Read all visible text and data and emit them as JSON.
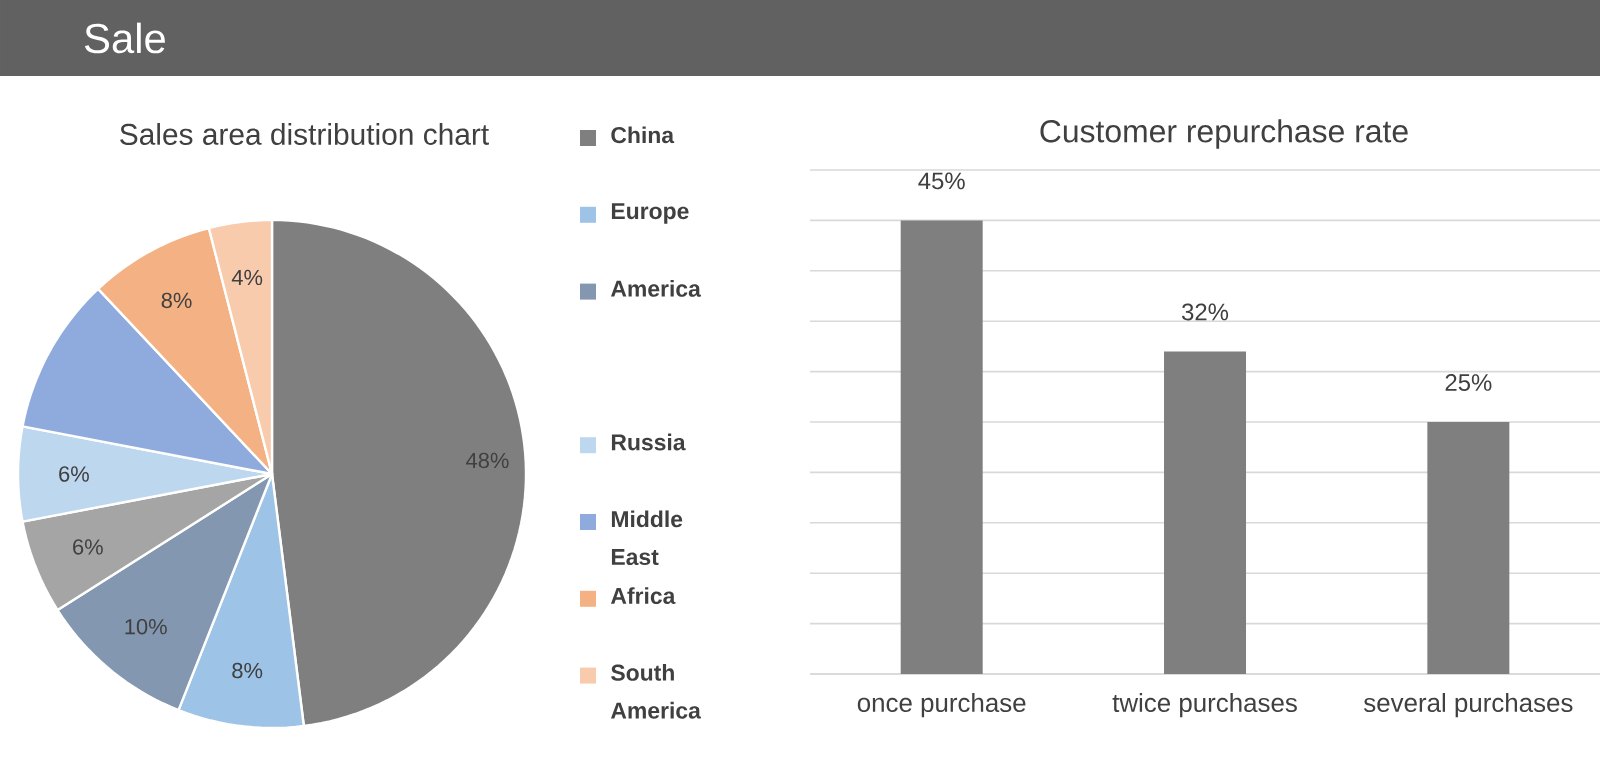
{
  "chart_data": [
    {
      "type": "other",
      "title": "Sale"
    },
    {
      "type": "pie",
      "title": "Sales area distribution chart",
      "categories": [
        "China",
        "Europe",
        "America",
        null,
        "Russia",
        "Middle East",
        "Africa",
        "South America"
      ],
      "values": [
        48,
        8,
        10,
        6,
        6,
        10,
        8,
        4
      ],
      "colors": [
        "#7f7f7f",
        "#9dc3e6",
        "#8497b0",
        "#a5a5a5",
        "#bdd7ee",
        "#8faadc",
        "#f4b183",
        "#f8cbad"
      ],
      "value_labels": [
        "48%",
        "8%",
        "10%",
        "6%",
        "6%",
        null,
        "8%",
        "4%"
      ],
      "legend": "right"
    },
    {
      "type": "bar",
      "title": "Customer repurchase rate",
      "categories": [
        "once purchase",
        "twice purchases",
        "several purchases"
      ],
      "values": [
        45,
        32,
        25
      ],
      "color": "#7f7f7f",
      "value_labels": [
        "45%",
        "32%",
        "25%"
      ],
      "ylim": [
        0,
        50
      ],
      "yticks": [
        {
          "value": 0,
          "label": null
        },
        {
          "value": 5,
          "label": null
        },
        {
          "value": 10,
          "label": null
        },
        {
          "value": 15,
          "label": null
        },
        {
          "value": 20,
          "label": null
        },
        {
          "value": 25,
          "label": null
        },
        {
          "value": 30,
          "label": null
        },
        {
          "value": 35,
          "label": null
        },
        {
          "value": 40,
          "label": null
        },
        {
          "value": 45,
          "label": null
        },
        {
          "value": 50,
          "label": null
        }
      ],
      "grid": "y",
      "tick_labels": "x"
    }
  ]
}
